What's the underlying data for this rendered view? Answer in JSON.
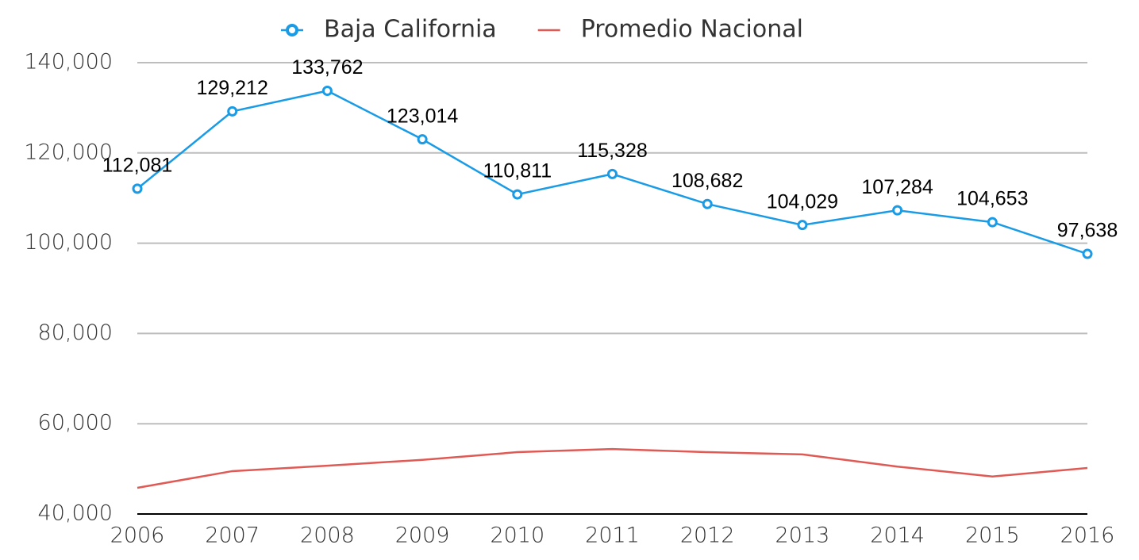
{
  "chart_data": {
    "type": "line",
    "categories": [
      "2006",
      "2007",
      "2008",
      "2009",
      "2010",
      "2011",
      "2012",
      "2013",
      "2014",
      "2015",
      "2016"
    ],
    "series": [
      {
        "name": "Baja California",
        "color": "#1a9be6",
        "marker": true,
        "values": [
          112081,
          129212,
          133762,
          123014,
          110811,
          115328,
          108682,
          104029,
          107284,
          104653,
          97638
        ],
        "value_labels": [
          "112,081",
          "129,212",
          "133,762",
          "123,014",
          "110,811",
          "115,328",
          "108,682",
          "104,029",
          "107,284",
          "104,653",
          "97,638"
        ]
      },
      {
        "name": "Promedio Nacional",
        "color": "#e05a55",
        "marker": false,
        "values": [
          45800,
          49500,
          50700,
          52000,
          53700,
          54400,
          53700,
          53200,
          50500,
          48300,
          50200
        ]
      }
    ],
    "ylim": [
      40000,
      140000
    ],
    "yticks": [
      {
        "value": 40000,
        "label": "40,000"
      },
      {
        "value": 60000,
        "label": "60,000"
      },
      {
        "value": 80000,
        "label": "80,000"
      },
      {
        "value": 100000,
        "label": "100,000"
      },
      {
        "value": 120000,
        "label": "120,000"
      },
      {
        "value": 140000,
        "label": "140,000"
      }
    ],
    "grid": true,
    "legend": "top"
  }
}
